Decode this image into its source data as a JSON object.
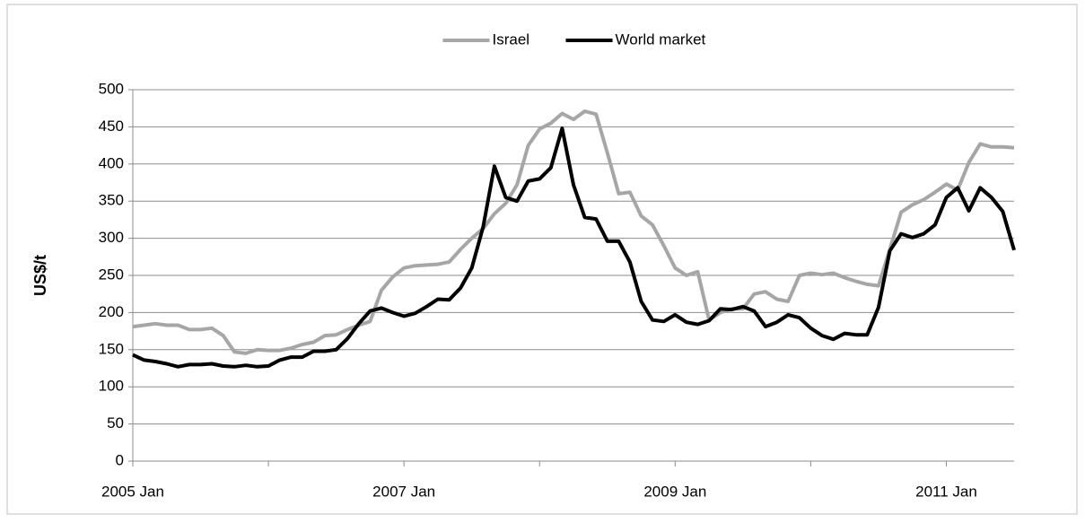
{
  "chart_data": {
    "type": "line",
    "y_label": "US$/t",
    "categories": [
      "2005 Jan",
      null,
      null,
      null,
      null,
      null,
      null,
      null,
      null,
      null,
      null,
      null,
      null,
      null,
      null,
      null,
      null,
      null,
      null,
      null,
      null,
      null,
      null,
      null,
      "2007 Jan",
      null,
      null,
      null,
      null,
      null,
      null,
      null,
      null,
      null,
      null,
      null,
      null,
      null,
      null,
      null,
      null,
      null,
      null,
      null,
      null,
      null,
      null,
      null,
      "2009 Jan",
      null,
      null,
      null,
      null,
      null,
      null,
      null,
      null,
      null,
      null,
      null,
      null,
      null,
      null,
      null,
      null,
      null,
      null,
      null,
      null,
      null,
      null,
      null,
      "2011 Jan",
      null,
      null,
      null,
      null,
      null,
      null
    ],
    "series": [
      {
        "name": "Israel",
        "color": "#a6a6a6",
        "values": [
          181,
          183,
          185,
          183,
          183,
          177,
          177,
          179,
          169,
          147,
          145,
          150,
          149,
          149,
          152,
          157,
          160,
          169,
          170,
          177,
          183,
          188,
          230,
          248,
          260,
          263,
          264,
          265,
          268,
          285,
          300,
          313,
          333,
          347,
          372,
          425,
          447,
          455,
          468,
          460,
          471,
          467,
          415,
          360,
          362,
          330,
          318,
          290,
          260,
          250,
          255,
          190,
          200,
          205,
          205,
          225,
          228,
          218,
          215,
          250,
          253,
          251,
          253,
          247,
          242,
          238,
          236,
          285,
          335,
          345,
          352,
          362,
          373,
          365,
          402,
          427,
          423,
          423,
          422
        ]
      },
      {
        "name": "World market",
        "color": "#000000",
        "values": [
          143,
          136,
          134,
          131,
          127,
          130,
          130,
          131,
          128,
          127,
          129,
          127,
          128,
          136,
          140,
          140,
          148,
          148,
          150,
          165,
          185,
          202,
          206,
          200,
          195,
          199,
          208,
          218,
          217,
          233,
          260,
          315,
          397,
          355,
          350,
          377,
          380,
          395,
          448,
          372,
          328,
          326,
          296,
          296,
          268,
          215,
          190,
          188,
          197,
          187,
          184,
          189,
          205,
          204,
          208,
          202,
          181,
          187,
          197,
          193,
          179,
          169,
          164,
          172,
          170,
          170,
          207,
          283,
          306,
          301,
          306,
          318,
          355,
          368,
          337,
          368,
          355,
          336,
          284
        ]
      }
    ],
    "ylim": [
      0,
      500
    ],
    "yticks": [
      0,
      50,
      100,
      150,
      200,
      250,
      300,
      350,
      400,
      450,
      500
    ],
    "grid": true,
    "legend": "top"
  }
}
